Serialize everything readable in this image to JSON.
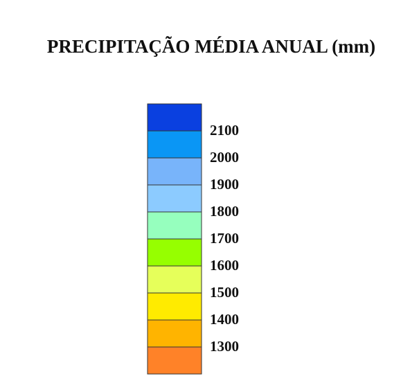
{
  "title": "PRECIPITAÇÃO MÉDIA ANUAL (mm)",
  "legend": {
    "colors": [
      "#0a40e0",
      "#0a96f5",
      "#78b4fa",
      "#8ccbff",
      "#96ffbe",
      "#96ff00",
      "#e6ff5a",
      "#ffeb00",
      "#ffb400",
      "#ff8228"
    ],
    "labels": [
      2100,
      2000,
      1900,
      1800,
      1700,
      1600,
      1500,
      1400,
      1300
    ]
  }
}
